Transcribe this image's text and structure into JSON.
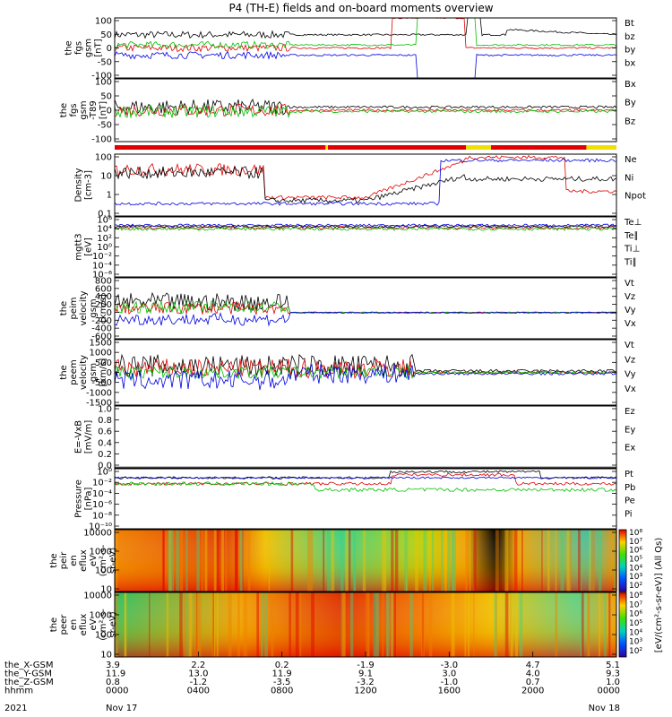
{
  "title": "P4 (TH-E) fields and on-board moments overview",
  "colors": {
    "black": "#000000",
    "red": "#e00000",
    "green": "#00c000",
    "blue": "#0000e0",
    "yellow": "#f0e000"
  },
  "chart_data": [
    {
      "type": "line",
      "panel": "fgs_gsm",
      "ylabel": [
        "the",
        "fgs",
        "gsm",
        "[nT]"
      ],
      "yticks": [
        "100",
        "50",
        "0",
        "-50",
        "-100"
      ],
      "ylim": [
        -100,
        100
      ],
      "series": [
        {
          "name": "Bt",
          "color": "#000000"
        },
        {
          "name": "bz",
          "color": "#e00000"
        },
        {
          "name": "by",
          "color": "#00c000"
        },
        {
          "name": "bx",
          "color": "#0000e0"
        }
      ]
    },
    {
      "type": "line",
      "panel": "fgs_gsm_t89",
      "ylabel": [
        "the",
        "fgs",
        "gsm",
        "-T89",
        "[nT]"
      ],
      "yticks": [
        "100",
        "50",
        "0",
        "-50",
        "-100"
      ],
      "ylim": [
        -120,
        100
      ],
      "series": [
        {
          "name": "Bx",
          "color": "#000000"
        },
        {
          "name": "By",
          "color": "#e00000"
        },
        {
          "name": "Bz",
          "color": "#00c000"
        }
      ]
    },
    {
      "type": "line",
      "panel": "density",
      "ylabel": [
        "Density",
        "[cm-3]"
      ],
      "yticks": [
        "100",
        "10",
        "1",
        "0.1"
      ],
      "scale": "log",
      "series": [
        {
          "name": "Ne",
          "color": "#e00000"
        },
        {
          "name": "Ni",
          "color": "#000000"
        },
        {
          "name": "Npot",
          "color": "#0000e0"
        }
      ]
    },
    {
      "type": "line",
      "panel": "temperature",
      "ylabel": [
        "mgtt3",
        "[eV]"
      ],
      "yticks": [
        "10⁶",
        "10⁴",
        "10²",
        "10⁰",
        "10⁻²",
        "10⁻⁴",
        "10⁻⁶"
      ],
      "scale": "log",
      "series": [
        {
          "name": "Te⊥",
          "color": "#e00000"
        },
        {
          "name": "Te∥",
          "color": "#000000"
        },
        {
          "name": "Ti⊥",
          "color": "#0000e0"
        },
        {
          "name": "Ti∥",
          "color": "#00c000"
        }
      ]
    },
    {
      "type": "line",
      "panel": "ion_velocity",
      "ylabel": [
        "the",
        "peim",
        "velocity",
        "gsm",
        "[km/s]"
      ],
      "yticks": [
        "800",
        "600",
        "400",
        "200",
        "0",
        "-200",
        "-400",
        "-600"
      ],
      "ylim": [
        -600,
        800
      ],
      "series": [
        {
          "name": "Vt",
          "color": "#000000"
        },
        {
          "name": "Vz",
          "color": "#e00000"
        },
        {
          "name": "Vy",
          "color": "#00c000"
        },
        {
          "name": "Vx",
          "color": "#0000e0"
        }
      ]
    },
    {
      "type": "line",
      "panel": "electron_velocity",
      "ylabel": [
        "the",
        "peem",
        "velocity",
        "gsm",
        "[km/s]"
      ],
      "yticks": [
        "1500",
        "1000",
        "500",
        "0",
        "-500",
        "-1000",
        "-1500"
      ],
      "ylim": [
        -1500,
        1500
      ],
      "series": [
        {
          "name": "Vt",
          "color": "#000000"
        },
        {
          "name": "Vz",
          "color": "#e00000"
        },
        {
          "name": "Vy",
          "color": "#00c000"
        },
        {
          "name": "Vx",
          "color": "#0000e0"
        }
      ]
    },
    {
      "type": "line",
      "panel": "efield",
      "ylabel": [
        "E=-VxB",
        "[mV/m]"
      ],
      "yticks": [
        "1.0",
        "0.8",
        "0.6",
        "0.4",
        "0.2",
        "0.0"
      ],
      "ylim": [
        0,
        1
      ],
      "series": [
        {
          "name": "Ez",
          "color": "#e00000"
        },
        {
          "name": "Ey",
          "color": "#00c000"
        },
        {
          "name": "Ex",
          "color": "#0000e0"
        }
      ]
    },
    {
      "type": "line",
      "panel": "pressure",
      "ylabel": [
        "Pressure",
        "[nPa]"
      ],
      "yticks": [
        "10⁰",
        "10⁻²",
        "10⁻⁴",
        "10⁻⁶",
        "10⁻⁸",
        "10⁻¹⁰"
      ],
      "scale": "log",
      "series": [
        {
          "name": "Pt",
          "color": "#000000"
        },
        {
          "name": "Pb",
          "color": "#e00000"
        },
        {
          "name": "Pe",
          "color": "#00c000"
        },
        {
          "name": "Pi",
          "color": "#0000e0"
        }
      ]
    },
    {
      "type": "heatmap",
      "panel": "peir_en_eflux",
      "ylabel": [
        "the",
        "peir",
        "en",
        "eflux",
        "eV",
        "(cm²-s-",
        "sr-eV)"
      ],
      "yticks": [
        "10000",
        "1000",
        "100",
        "10"
      ],
      "scale": "log"
    },
    {
      "type": "heatmap",
      "panel": "peer_en_eflux",
      "ylabel": [
        "the",
        "peer",
        "en",
        "eflux",
        "eV",
        "(cm²-s-",
        "sr-eV)"
      ],
      "yticks": [
        "10000",
        "1000",
        "100",
        "10"
      ],
      "scale": "log"
    }
  ],
  "colorbar": {
    "ticks": [
      "10⁸",
      "10⁷",
      "10⁶",
      "10⁵",
      "10⁴",
      "10³",
      "10²"
    ],
    "label": "[eV/(cm²-s-sr-eV)] (All Qs)"
  },
  "xaxis": {
    "rows": [
      {
        "label": "the_X-GSM",
        "values": [
          "3.9",
          "2.2",
          "0.2",
          "-1.9",
          "-3.0",
          "4.7",
          "5.1"
        ]
      },
      {
        "label": "the_Y-GSM",
        "values": [
          "11.9",
          "13.0",
          "11.9",
          "9.1",
          "3.0",
          "4.0",
          "9.3"
        ]
      },
      {
        "label": "the_Z-GSM",
        "values": [
          "0.8",
          "-1.2",
          "-3.5",
          "-3.2",
          "-1.0",
          "0.7",
          "1.0"
        ]
      },
      {
        "label": "hhmm",
        "values": [
          "0000",
          "0400",
          "0800",
          "1200",
          "1600",
          "2000",
          "0000"
        ]
      }
    ],
    "year": "2021",
    "start_date": "Nov 17",
    "end_date": "Nov 18"
  }
}
